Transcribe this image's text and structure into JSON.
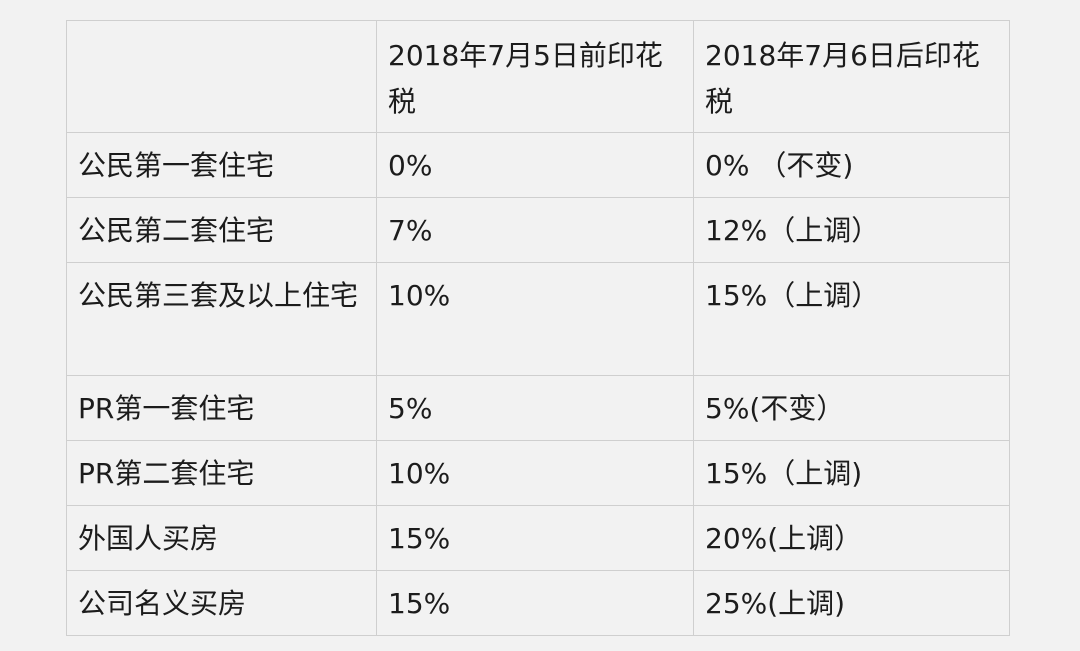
{
  "table": {
    "header": [
      "",
      "2018年7月5日前印花税",
      "2018年7月6日后印花税"
    ],
    "rows": [
      [
        "公民第一套住宅",
        "0%",
        "0% （不变)"
      ],
      [
        "公民第二套住宅",
        "7%",
        "12%（上调）"
      ],
      [
        "公民第三套及以上住宅",
        "10%",
        "15%（上调）"
      ],
      [
        "PR第一套住宅",
        "5%",
        "5%(不变）"
      ],
      [
        "PR第二套住宅",
        "10%",
        "15%（上调)"
      ],
      [
        "外国人买房",
        "15%",
        "20%(上调）"
      ],
      [
        "公司名义买房",
        "15%",
        "25%(上调)"
      ]
    ]
  }
}
